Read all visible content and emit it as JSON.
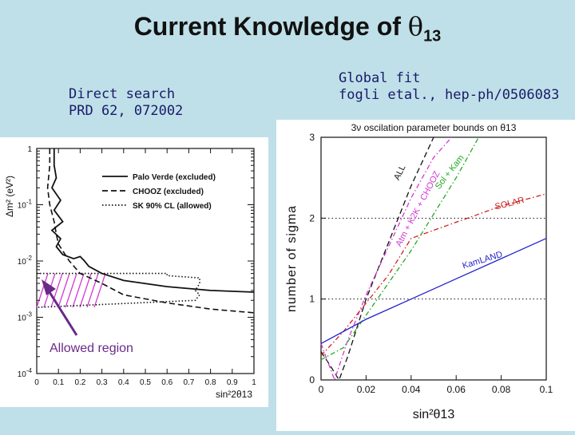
{
  "slide": {
    "title_prefix": "Current Knowledge of ",
    "title_symbol": "θ",
    "title_subscript": "13",
    "left_label_line1": "Direct search",
    "left_label_line2": "PRD 62, 072002",
    "right_label_line1": "Global fit",
    "right_label_line2": "fogli etal., hep-ph/0506083",
    "annotation": "Allowed region"
  },
  "colors": {
    "background": "#bfe0e8",
    "annotation": "#6a2a8a",
    "hatch": "#d23ad2",
    "all": "#111111",
    "atm_k2k_chooz": "#d23ad2",
    "sk_kam": "#22aa22",
    "solar": "#cc2222",
    "kamland": "#2222cc"
  },
  "chart_data": [
    {
      "type": "line",
      "title": "",
      "xlabel": "sin²2θ13",
      "ylabel": "Δm² (eV²)",
      "xlim": [
        0,
        1
      ],
      "ylim": [
        0.0001,
        1
      ],
      "y_scale": "log",
      "x_ticks": [
        "0",
        "0.1",
        "0.2",
        "0.3",
        "0.4",
        "0.5",
        "0.6",
        "0.7",
        "0.8",
        "0.9",
        "1"
      ],
      "y_ticks": [
        {
          "base": "1",
          "exp": ""
        },
        {
          "base": "10",
          "exp": "-1"
        },
        {
          "base": "10",
          "exp": "-2"
        },
        {
          "base": "10",
          "exp": "-3"
        },
        {
          "base": "10",
          "exp": "-4"
        }
      ],
      "legend": "top-right",
      "series": [
        {
          "name": "Palo Verde (excluded)",
          "style": "solid",
          "x": [
            0.08,
            0.08,
            0.09,
            0.07,
            0.11,
            0.08,
            0.12,
            0.07,
            0.11,
            0.09,
            0.12,
            0.17,
            0.2,
            0.22,
            0.24,
            0.3,
            0.4,
            0.6,
            0.8,
            1.0
          ],
          "y": [
            1,
            0.5,
            0.3,
            0.2,
            0.12,
            0.08,
            0.05,
            0.035,
            0.025,
            0.018,
            0.013,
            0.011,
            0.012,
            0.01,
            0.008,
            0.006,
            0.0045,
            0.0035,
            0.003,
            0.0028
          ]
        },
        {
          "name": "CHOOZ (excluded)",
          "style": "dashed",
          "x": [
            0.06,
            0.06,
            0.05,
            0.06,
            0.08,
            0.09,
            0.1,
            0.15,
            0.2,
            0.3,
            0.4,
            0.6,
            0.8,
            1.0
          ],
          "y": [
            1,
            0.5,
            0.2,
            0.1,
            0.05,
            0.03,
            0.02,
            0.01,
            0.006,
            0.004,
            0.0025,
            0.0018,
            0.0014,
            0.0012
          ]
        },
        {
          "name": "SK 90% CL (allowed)",
          "style": "dotted",
          "x": [
            0.0,
            0.6,
            0.6,
            0.75,
            0.75,
            0.73,
            0.75,
            0.73,
            0.0
          ],
          "y": [
            0.006,
            0.006,
            0.0055,
            0.005,
            0.004,
            0.003,
            0.0025,
            0.002,
            0.0015
          ]
        }
      ]
    },
    {
      "type": "line",
      "title": "3ν oscilation parameter bounds on θ13",
      "xlabel": "sin²θ13",
      "ylabel": "number of sigma",
      "xlim": [
        0,
        0.1
      ],
      "ylim": [
        0,
        3
      ],
      "x_ticks": [
        "0",
        "0.02",
        "0.04",
        "0.06",
        "0.08",
        "0.1"
      ],
      "y_ticks": [
        "0",
        "1",
        "2",
        "3"
      ],
      "grid": "dotted at 1 and 2 sigma",
      "series": [
        {
          "name": "ALL",
          "style": "dashed",
          "color": "#111111",
          "x": [
            0.0,
            0.004,
            0.008,
            0.012,
            0.02,
            0.03,
            0.04,
            0.05
          ],
          "y": [
            0.35,
            0.18,
            0.0,
            0.3,
            1.0,
            1.7,
            2.4,
            3.0
          ]
        },
        {
          "name": "Atm + K2K + CHOOZ",
          "style": "dash-dot",
          "color": "#d23ad2",
          "x": [
            0.0,
            0.006,
            0.012,
            0.02,
            0.03,
            0.04,
            0.05,
            0.058
          ],
          "y": [
            0.45,
            0.0,
            0.5,
            1.05,
            1.65,
            2.25,
            2.75,
            3.0
          ]
        },
        {
          "name": "Sol + Kam",
          "style": "dash-dot",
          "color": "#22aa22",
          "x": [
            0.0,
            0.01,
            0.02,
            0.03,
            0.04,
            0.05,
            0.06,
            0.07
          ],
          "y": [
            0.25,
            0.4,
            0.8,
            1.2,
            1.6,
            2.05,
            2.5,
            3.0
          ]
        },
        {
          "name": "SOLAR",
          "style": "dash-dot",
          "color": "#cc2222",
          "x": [
            0.0,
            0.01,
            0.02,
            0.03,
            0.04,
            0.05,
            0.06,
            0.07,
            0.08,
            0.1
          ],
          "y": [
            0.3,
            0.6,
            0.95,
            1.3,
            1.75,
            1.85,
            1.95,
            2.05,
            2.15,
            2.3
          ]
        },
        {
          "name": "KamLAND",
          "style": "solid",
          "color": "#2222cc",
          "x": [
            0.0,
            0.02,
            0.04,
            0.06,
            0.08,
            0.1
          ],
          "y": [
            0.45,
            0.75,
            1.0,
            1.25,
            1.5,
            1.75
          ]
        }
      ]
    }
  ]
}
